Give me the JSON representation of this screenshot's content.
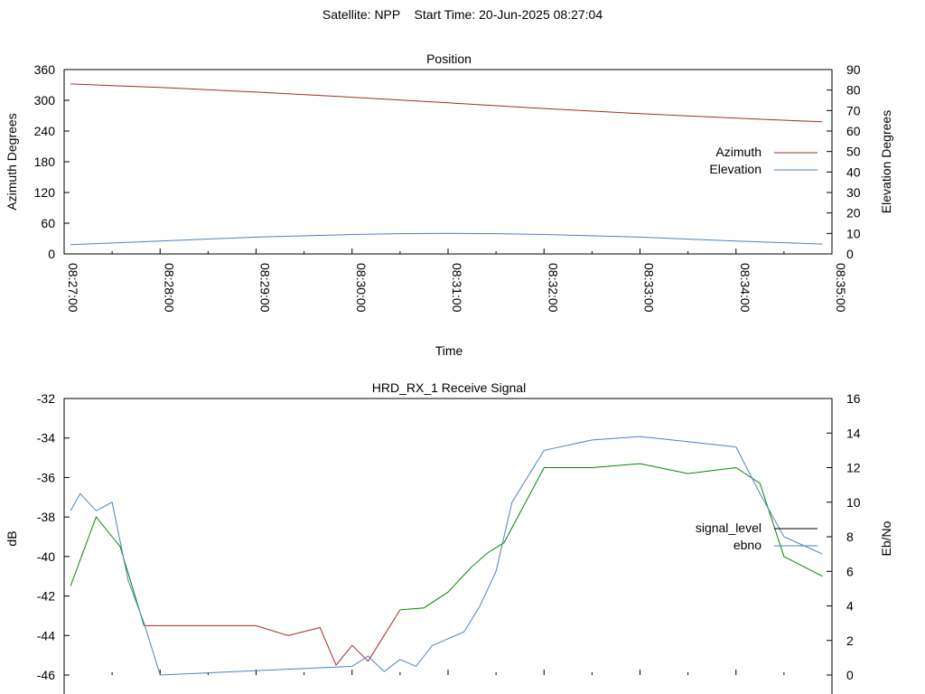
{
  "header": {
    "satellite_label": "Satellite: NPP",
    "start_time_label": "Start Time: 20-Jun-2025 08:27:04"
  },
  "chart_data": [
    {
      "type": "line",
      "title": "Position",
      "xlabel": "Time",
      "ylabel_left": "Azimuth Degrees",
      "ylabel_right": "Elevation Degrees",
      "x_ticks": [
        "08:27:00",
        "08:28:00",
        "08:29:00",
        "08:30:00",
        "08:31:00",
        "08:32:00",
        "08:33:00",
        "08:34:00",
        "08:35:00"
      ],
      "xlim_minutes": [
        0,
        8
      ],
      "ylim_left": [
        0,
        360
      ],
      "yticks_left": [
        0,
        60,
        120,
        180,
        240,
        300,
        360
      ],
      "ylim_right": [
        0,
        90
      ],
      "yticks_right": [
        0,
        10,
        20,
        30,
        40,
        50,
        60,
        70,
        80,
        90
      ],
      "legend_position": "right-center",
      "grid": false,
      "series": [
        {
          "name": "Azimuth",
          "axis": "left",
          "color": "#a52a2a",
          "x": [
            "08:27:04",
            "08:28:00",
            "08:29:00",
            "08:30:00",
            "08:31:00",
            "08:32:00",
            "08:33:00",
            "08:34:00",
            "08:34:54"
          ],
          "y": [
            332,
            325,
            316,
            306,
            295,
            284,
            274,
            265,
            258
          ]
        },
        {
          "name": "Elevation",
          "axis": "right",
          "color": "#4f81bd",
          "x": [
            "08:27:04",
            "08:28:00",
            "08:29:00",
            "08:30:00",
            "08:30:30",
            "08:31:00",
            "08:31:30",
            "08:32:00",
            "08:33:00",
            "08:34:00",
            "08:34:54"
          ],
          "y": [
            4.5,
            6.3,
            8.2,
            9.5,
            9.9,
            10,
            9.9,
            9.5,
            8.2,
            6.3,
            4.8
          ]
        }
      ]
    },
    {
      "type": "line",
      "title": "HRD_RX_1 Receive Signal",
      "ylabel_left": "dB",
      "ylabel_right": "Eb/No",
      "ylim_left": [
        -46,
        -32
      ],
      "yticks_left": [
        -46,
        -44,
        -42,
        -40,
        -38,
        -36,
        -34,
        -32
      ],
      "ylim_right": [
        0,
        16
      ],
      "yticks_right": [
        0,
        2,
        4,
        6,
        8,
        10,
        12,
        14,
        16
      ],
      "legend_position": "right-center",
      "grid": false,
      "series": [
        {
          "name": "signal_level",
          "axis": "left",
          "segment_colors": [
            "#008800",
            "#a52a2a",
            "#008800"
          ],
          "x": [
            "08:27:04",
            "08:27:20",
            "08:27:35",
            "08:27:50",
            "08:28:00",
            "08:28:30",
            "08:29:00",
            "08:29:20",
            "08:29:40",
            "08:29:50",
            "08:30:00",
            "08:30:10",
            "08:30:20",
            "08:30:30",
            "08:30:45",
            "08:31:00",
            "08:31:15",
            "08:31:25",
            "08:31:35",
            "08:32:00",
            "08:32:30",
            "08:33:00",
            "08:33:30",
            "08:34:00",
            "08:34:15",
            "08:34:30",
            "08:34:54"
          ],
          "y": [
            -41.5,
            -38,
            -39.5,
            -43.5,
            -43.5,
            -43.5,
            -43.5,
            -44,
            -43.6,
            -45.5,
            -44.5,
            -45.3,
            -44,
            -42.7,
            -42.6,
            -41.8,
            -40.5,
            -39.8,
            -39.3,
            -35.5,
            -35.5,
            -35.3,
            -35.8,
            -35.5,
            -36.3,
            -40,
            -41
          ]
        },
        {
          "name": "ebno",
          "axis": "right",
          "color": "#4f81bd",
          "x": [
            "08:27:04",
            "08:27:10",
            "08:27:20",
            "08:27:30",
            "08:27:40",
            "08:27:50",
            "08:28:00",
            "08:30:00",
            "08:30:10",
            "08:30:20",
            "08:30:30",
            "08:30:40",
            "08:30:50",
            "08:31:00",
            "08:31:10",
            "08:31:20",
            "08:31:30",
            "08:31:40",
            "08:32:00",
            "08:32:30",
            "08:33:00",
            "08:33:30",
            "08:34:00",
            "08:34:15",
            "08:34:30",
            "08:34:54"
          ],
          "y": [
            9.5,
            10.5,
            9.5,
            10,
            5.5,
            3,
            0,
            0.5,
            1.1,
            0.2,
            0.9,
            0.5,
            1.7,
            2.1,
            2.5,
            4,
            6,
            10,
            13,
            13.6,
            13.8,
            13.5,
            13.2,
            10.5,
            8,
            7
          ]
        }
      ]
    }
  ],
  "legend": {
    "azimuth": "Azimuth",
    "elevation": "Elevation",
    "signal_level": "signal_level",
    "ebno": "ebno"
  }
}
